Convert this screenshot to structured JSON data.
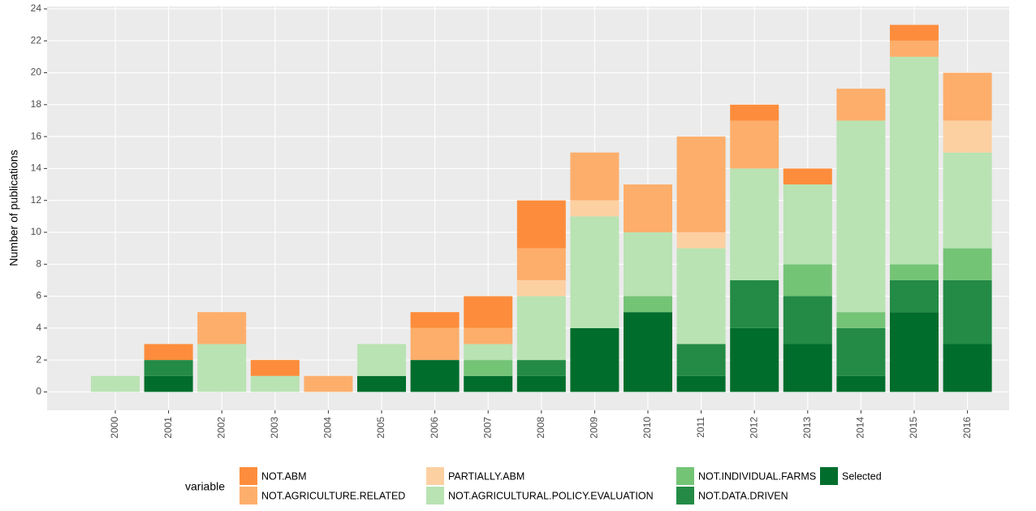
{
  "chart_data": {
    "type": "stacked_bar",
    "y_label": "Number of publications",
    "legend_title": "variable",
    "categories": [
      "2000",
      "2001",
      "2002",
      "2003",
      "2004",
      "2005",
      "2006",
      "2007",
      "2008",
      "2009",
      "2010",
      "2011",
      "2012",
      "2013",
      "2014",
      "2015",
      "2016"
    ],
    "series": [
      {
        "name": "NOT.ABM",
        "color": "#fd8d3c",
        "values": [
          0,
          1,
          0,
          1,
          0,
          0,
          1,
          2,
          3,
          0,
          0,
          0,
          1,
          1,
          0,
          1,
          0
        ]
      },
      {
        "name": "NOT.AGRICULTURE.RELATED",
        "color": "#fdae6b",
        "values": [
          0,
          0,
          2,
          0,
          1,
          0,
          2,
          1,
          2,
          3,
          3,
          6,
          3,
          0,
          2,
          1,
          3
        ]
      },
      {
        "name": "PARTIALLY.ABM",
        "color": "#fdd0a2",
        "values": [
          0,
          0,
          0,
          0,
          0,
          0,
          0,
          0,
          1,
          1,
          0,
          1,
          0,
          0,
          0,
          0,
          2
        ]
      },
      {
        "name": "NOT.AGRICULTURAL.POLICY.EVALUATION",
        "color": "#b9e3b3",
        "values": [
          1,
          0,
          3,
          1,
          0,
          2,
          0,
          1,
          4,
          7,
          4,
          6,
          7,
          5,
          12,
          13,
          6
        ]
      },
      {
        "name": "NOT.INDIVIDUAL.FARMS",
        "color": "#74c476",
        "values": [
          0,
          0,
          0,
          0,
          0,
          0,
          0,
          1,
          0,
          0,
          1,
          0,
          0,
          2,
          1,
          1,
          2
        ]
      },
      {
        "name": "NOT.DATA.DRIVEN",
        "color": "#238b45",
        "values": [
          0,
          1,
          0,
          0,
          0,
          0,
          0,
          0,
          1,
          0,
          0,
          2,
          3,
          3,
          3,
          2,
          4
        ]
      },
      {
        "name": "Selected",
        "color": "#006d2c",
        "values": [
          0,
          1,
          0,
          0,
          0,
          1,
          2,
          1,
          1,
          4,
          5,
          1,
          4,
          3,
          1,
          5,
          3
        ]
      }
    ],
    "ylim": [
      -1.15,
      24.15
    ],
    "yticks": [
      0,
      2,
      4,
      6,
      8,
      10,
      12,
      14,
      16,
      18,
      20,
      22,
      24
    ],
    "grid": true
  }
}
